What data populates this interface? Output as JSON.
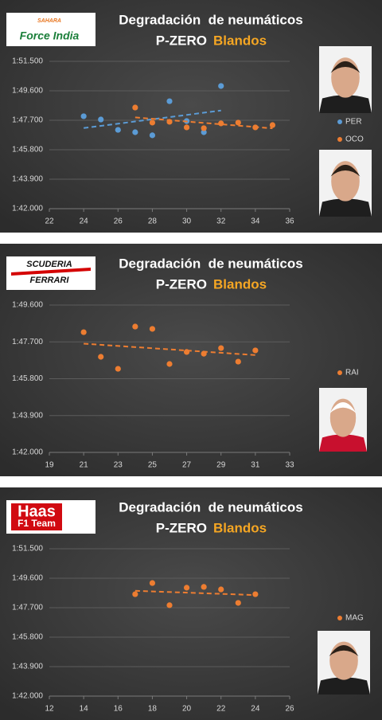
{
  "chart_data": [
    {
      "type": "scatter",
      "logo": [
        "SAHARA",
        "Force India"
      ],
      "title": "Degradación  de neumáticos",
      "subtitle": "P-ZERO",
      "subtitle_highlight": "Blandos",
      "xlim": [
        22,
        36
      ],
      "xticks": [
        22,
        24,
        26,
        28,
        30,
        32,
        34,
        36
      ],
      "ylim": [
        102,
        111.5
      ],
      "yticks": [
        {
          "value": 102,
          "label": "1:42.000"
        },
        {
          "value": 103.9,
          "label": "1:43.900"
        },
        {
          "value": 105.8,
          "label": "1:45.800"
        },
        {
          "value": 107.7,
          "label": "1:47.700"
        },
        {
          "value": 109.6,
          "label": "1:49.600"
        },
        {
          "value": 111.5,
          "label": "1:51.500"
        }
      ],
      "grid": true,
      "trendline": true,
      "series": [
        {
          "name": "PER",
          "color": "#5b9bd5",
          "x": [
            24,
            25,
            26,
            27,
            28,
            29,
            30,
            31,
            32
          ],
          "values": [
            107.96,
            107.75,
            107.08,
            106.93,
            106.73,
            108.93,
            107.65,
            106.93,
            109.91
          ]
        },
        {
          "name": "OCO",
          "color": "#ed7d31",
          "x": [
            27,
            28,
            29,
            30,
            31,
            32,
            33,
            34,
            35
          ],
          "values": [
            108.52,
            107.55,
            107.6,
            107.24,
            107.19,
            107.5,
            107.55,
            107.24,
            107.39
          ]
        }
      ]
    },
    {
      "type": "scatter",
      "logo": [
        "SCUDERIA",
        "FERRARI"
      ],
      "title": "Degradación  de neumáticos",
      "subtitle": "P-ZERO",
      "subtitle_highlight": "Blandos",
      "xlim": [
        19,
        33
      ],
      "xticks": [
        19,
        21,
        23,
        25,
        27,
        29,
        31,
        33
      ],
      "ylim": [
        102,
        109.6
      ],
      "yticks": [
        {
          "value": 102,
          "label": "1:42.000"
        },
        {
          "value": 103.9,
          "label": "1:43.900"
        },
        {
          "value": 105.8,
          "label": "1:45.800"
        },
        {
          "value": 107.7,
          "label": "1:47.700"
        },
        {
          "value": 109.6,
          "label": "1:49.600"
        }
      ],
      "grid": true,
      "trendline": true,
      "series": [
        {
          "name": "RAI",
          "color": "#ed7d31",
          "x": [
            21,
            22,
            23,
            24,
            25,
            26,
            27,
            28,
            29,
            30,
            31
          ],
          "values": [
            108.2,
            106.93,
            106.31,
            108.49,
            108.37,
            106.56,
            107.18,
            107.09,
            107.38,
            106.68,
            107.26
          ]
        }
      ]
    },
    {
      "type": "scatter",
      "logo": [
        "Haas",
        "F1 Team"
      ],
      "title": "Degradación  de neumáticos",
      "subtitle": "P-ZERO",
      "subtitle_highlight": "Blandos",
      "xlim": [
        12,
        26
      ],
      "xticks": [
        12,
        14,
        16,
        18,
        20,
        22,
        24,
        26
      ],
      "ylim": [
        102,
        111.5
      ],
      "yticks": [
        {
          "value": 102,
          "label": "1:42.000"
        },
        {
          "value": 103.9,
          "label": "1:43.900"
        },
        {
          "value": 105.8,
          "label": "1:45.800"
        },
        {
          "value": 107.7,
          "label": "1:47.700"
        },
        {
          "value": 109.6,
          "label": "1:49.600"
        },
        {
          "value": 111.5,
          "label": "1:51.500"
        }
      ],
      "grid": true,
      "trendline": true,
      "series": [
        {
          "name": "MAG",
          "color": "#ed7d31",
          "x": [
            17,
            18,
            19,
            20,
            21,
            22,
            23,
            24
          ],
          "values": [
            108.57,
            109.29,
            107.86,
            108.99,
            109.04,
            108.88,
            108.01,
            108.57
          ]
        }
      ]
    }
  ]
}
